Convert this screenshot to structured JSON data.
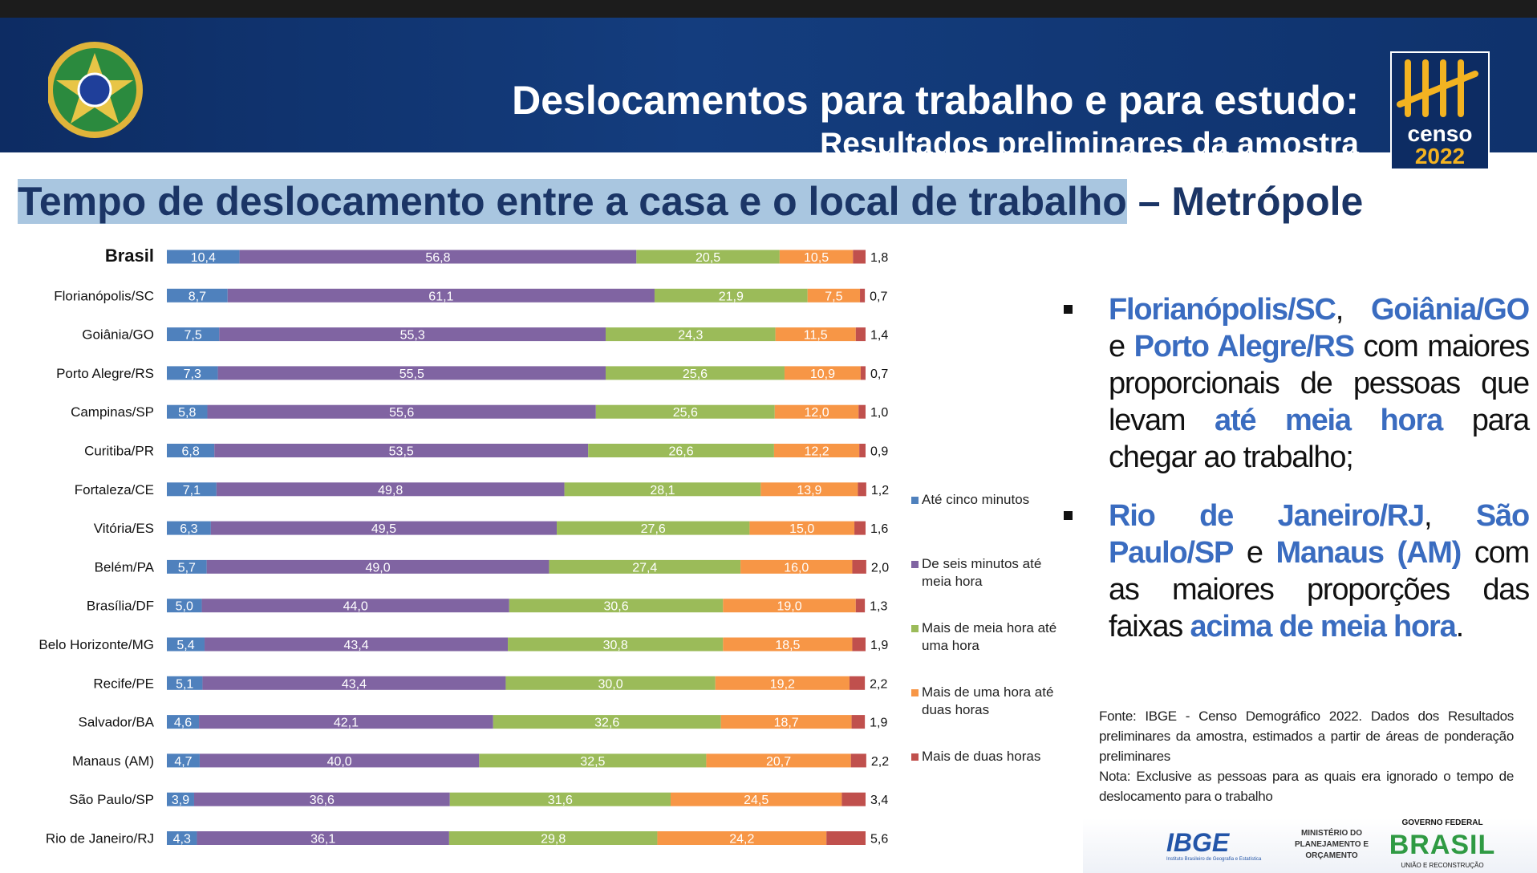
{
  "header": {
    "title": "Deslocamentos para trabalho e para estudo:",
    "subtitle": "Resultados preliminares da amostra"
  },
  "logo": {
    "censo": "censo",
    "year": "2022"
  },
  "chart_data": {
    "type": "stacked-bar-horizontal",
    "title_main": "Tempo de deslocamento entre a casa e o local de trabalho",
    "title_suffix": " – Metrópole",
    "xlim": [
      0,
      100
    ],
    "categories": [
      "Brasil",
      "Florianópolis/SC",
      "Goiânia/GO",
      "Porto Alegre/RS",
      "Campinas/SP",
      "Curitiba/PR",
      "Fortaleza/CE",
      "Vitória/ES",
      "Belém/PA",
      "Brasília/DF",
      "Belo Horizonte/MG",
      "Recife/PE",
      "Salvador/BA",
      "Manaus (AM)",
      "São Paulo/SP",
      "Rio de Janeiro/RJ"
    ],
    "series": [
      {
        "name": "Até cinco minutos",
        "color": "#4f81bd",
        "values": [
          10.4,
          8.7,
          7.5,
          7.3,
          5.8,
          6.8,
          7.1,
          6.3,
          5.7,
          5.0,
          5.4,
          5.1,
          4.6,
          4.7,
          3.9,
          4.3
        ],
        "value_labels": [
          "10,4",
          "8,7",
          "7,5",
          "7,3",
          "5,8",
          "6,8",
          "7,1",
          "6,3",
          "5,7",
          "5,0",
          "5,4",
          "5,1",
          "4,6",
          "4,7",
          "3,9",
          "4,3"
        ]
      },
      {
        "name": "De seis minutos até meia hora",
        "color": "#8064a2",
        "values": [
          56.8,
          61.1,
          55.3,
          55.5,
          55.6,
          53.5,
          49.8,
          49.5,
          49.0,
          44.0,
          43.4,
          43.4,
          42.1,
          40.0,
          36.6,
          36.1
        ],
        "value_labels": [
          "56,8",
          "61,1",
          "55,3",
          "55,5",
          "55,6",
          "53,5",
          "49,8",
          "49,5",
          "49,0",
          "44,0",
          "43,4",
          "43,4",
          "42,1",
          "40,0",
          "36,6",
          "36,1"
        ]
      },
      {
        "name": "Mais de meia hora até uma hora",
        "color": "#9bbb59",
        "values": [
          20.5,
          21.9,
          24.3,
          25.6,
          25.6,
          26.6,
          28.1,
          27.6,
          27.4,
          30.6,
          30.8,
          30.0,
          32.6,
          32.5,
          31.6,
          29.8
        ],
        "value_labels": [
          "20,5",
          "21,9",
          "24,3",
          "25,6",
          "25,6",
          "26,6",
          "28,1",
          "27,6",
          "27,4",
          "30,6",
          "30,8",
          "30,0",
          "32,6",
          "32,5",
          "31,6",
          "29,8"
        ]
      },
      {
        "name": "Mais de uma hora até duas horas",
        "color": "#f79646",
        "values": [
          10.5,
          7.5,
          11.5,
          10.9,
          12.0,
          12.2,
          13.9,
          15.0,
          16.0,
          19.0,
          18.5,
          19.2,
          18.7,
          20.7,
          24.5,
          24.2
        ],
        "value_labels": [
          "10,5",
          "7,5",
          "11,5",
          "10,9",
          "12,0",
          "12,2",
          "13,9",
          "15,0",
          "16,0",
          "19,0",
          "18,5",
          "19,2",
          "18,7",
          "20,7",
          "24,5",
          "24,2"
        ]
      },
      {
        "name": "Mais de duas horas",
        "color": "#c0504d",
        "values": [
          1.8,
          0.7,
          1.4,
          0.7,
          1.0,
          0.9,
          1.2,
          1.6,
          2.0,
          1.3,
          1.9,
          2.2,
          1.9,
          2.2,
          3.4,
          5.6
        ],
        "value_labels": [
          "1,8",
          "0,7",
          "1,4",
          "0,7",
          "1,0",
          "0,9",
          "1,2",
          "1,6",
          "2,0",
          "1,3",
          "1,9",
          "2,2",
          "1,9",
          "2,2",
          "3,4",
          "5,6"
        ]
      }
    ]
  },
  "bullets": [
    {
      "segments": [
        {
          "text": "Florianópolis/SC",
          "color": "#3a6cc0"
        },
        {
          "text": ", ",
          "color": "#111111"
        },
        {
          "text": "Goiânia/GO",
          "color": "#3a6cc0"
        },
        {
          "text": " e ",
          "color": "#111111"
        },
        {
          "text": "Porto Alegre/RS",
          "color": "#3a6cc0"
        },
        {
          "text": " com maiores proporcionais de pessoas que levam ",
          "color": "#111111"
        },
        {
          "text": "até meia hora",
          "color": "#3a6cc0"
        },
        {
          "text": " para chegar ao trabalho;",
          "color": "#111111"
        }
      ]
    },
    {
      "segments": [
        {
          "text": "Rio de Janeiro/RJ",
          "color": "#3a6cc0"
        },
        {
          "text": ", ",
          "color": "#111111"
        },
        {
          "text": "São Paulo/SP",
          "color": "#3a6cc0"
        },
        {
          "text": " e ",
          "color": "#111111"
        },
        {
          "text": "Manaus (AM)",
          "color": "#3a6cc0"
        },
        {
          "text": " com as maiores proporções das faixas ",
          "color": "#111111"
        },
        {
          "text": "acima de meia hora",
          "color": "#3a6cc0"
        },
        {
          "text": ".",
          "color": "#111111"
        }
      ]
    }
  ],
  "notes": {
    "source": "Fonte: IBGE - Censo Demográfico 2022. Dados dos Resultados preliminares da amostra, estimados a partir de áreas de ponderação preliminares",
    "note": "Nota: Exclusive as pessoas para as quais era ignorado o tempo de deslocamento para o trabalho"
  },
  "footer": {
    "ibge": "IBGE",
    "ibge_sub": "Instituto Brasileiro de Geografia e Estatística",
    "ministry": "MINISTÉRIO DO PLANEJAMENTO E ORÇAMENTO",
    "gov": "GOVERNO FEDERAL",
    "brasil": "BRASIL",
    "union": "UNIÃO E RECONSTRUÇÃO"
  }
}
